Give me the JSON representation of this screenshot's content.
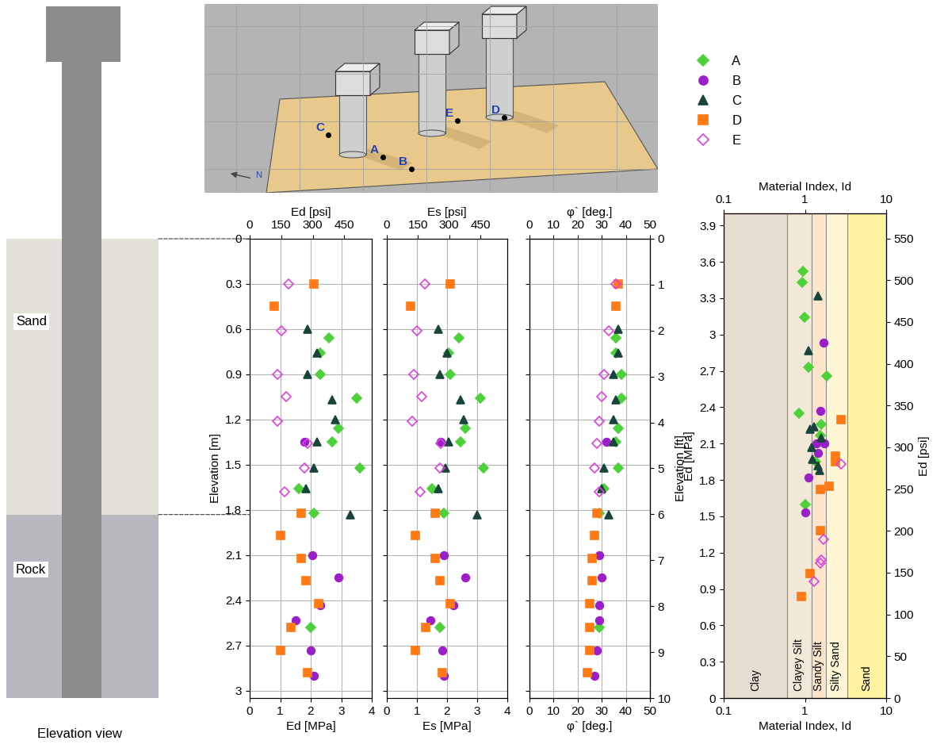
{
  "elevation_view": {
    "caption": "Elevation view",
    "layers": [
      {
        "name": "Sand",
        "top": 0,
        "bottom": 1.83
      },
      {
        "name": "Rock",
        "top": 1.83,
        "bottom": 3.048
      }
    ]
  },
  "site_sketch": {
    "points": [
      "A",
      "B",
      "C",
      "D",
      "E"
    ],
    "compass_label": "N"
  },
  "chart_data": [
    {
      "type": "scatter",
      "xlabel": "Ed [MPa]",
      "x2label": "Ed [psi]",
      "ylabel": "Elevation [m]",
      "xlim": [
        0,
        4
      ],
      "xticks": [
        0,
        1,
        2,
        3,
        4
      ],
      "x2lim": [
        0,
        580
      ],
      "x2ticks": [
        0,
        150,
        300,
        450
      ],
      "ylim": [
        3.048,
        0
      ],
      "yticks": [
        0,
        0.3,
        0.6,
        0.9,
        1.2,
        1.5,
        1.8,
        2.1,
        2.4,
        2.7,
        3
      ],
      "grid": true,
      "legend": "upper left",
      "series": [
        {
          "name": "A",
          "color": "#4cd13a",
          "marker": "diamond",
          "x": [
            2.6,
            2.3,
            2.3,
            3.5,
            2.9,
            2.7,
            3.6,
            1.6,
            2.1,
            2.0
          ],
          "y": [
            0.66,
            0.76,
            0.9,
            1.06,
            1.26,
            1.35,
            1.52,
            1.66,
            1.82,
            2.58
          ]
        },
        {
          "name": "B",
          "color": "#9b1fc9",
          "marker": "circle",
          "x": [
            1.8,
            2.05,
            2.9,
            2.3,
            1.5,
            2.0,
            2.1
          ],
          "y": [
            1.35,
            2.1,
            2.25,
            2.43,
            2.53,
            2.73,
            2.9
          ]
        },
        {
          "name": "C",
          "color": "#18453b",
          "marker": "triangle",
          "x": [
            1.9,
            2.2,
            1.9,
            2.7,
            2.8,
            2.2,
            2.1,
            1.85,
            3.3
          ],
          "y": [
            0.6,
            0.76,
            0.9,
            1.07,
            1.2,
            1.35,
            1.52,
            1.66,
            1.83
          ]
        },
        {
          "name": "D",
          "color": "#ff7a14",
          "marker": "square",
          "x": [
            2.1,
            0.8,
            1.7,
            1.0,
            1.7,
            1.85,
            2.25,
            1.35,
            1.0,
            1.9
          ],
          "y": [
            0.3,
            0.45,
            1.82,
            1.97,
            2.12,
            2.27,
            2.42,
            2.58,
            2.73,
            2.88
          ]
        },
        {
          "name": "E",
          "color": "#e040e0",
          "marker": "open_diamond",
          "x": [
            1.27,
            1.05,
            0.9,
            1.2,
            0.9,
            1.9,
            1.8,
            1.15
          ],
          "y": [
            0.3,
            0.61,
            0.9,
            1.05,
            1.21,
            1.36,
            1.52,
            1.68
          ]
        }
      ]
    },
    {
      "type": "scatter",
      "xlabel": "Es [MPa]",
      "x2label": "Es [psi]",
      "xlim": [
        0,
        4
      ],
      "xticks": [
        0,
        1,
        2,
        3,
        4
      ],
      "x2lim": [
        0,
        580
      ],
      "x2ticks": [
        0,
        150,
        300,
        450
      ],
      "ylim": [
        3.048,
        0
      ],
      "yticks": [
        0,
        0.3,
        0.6,
        0.9,
        1.2,
        1.5,
        1.8,
        2.1,
        2.4,
        2.7,
        3
      ],
      "grid": true,
      "tick_labels": "x",
      "series": [
        {
          "name": "A",
          "color": "#4cd13a",
          "marker": "diamond",
          "x": [
            2.4,
            2.05,
            2.1,
            3.1,
            2.6,
            2.45,
            3.2,
            1.5,
            1.9,
            1.75
          ],
          "y": [
            0.66,
            0.76,
            0.9,
            1.06,
            1.26,
            1.35,
            1.52,
            1.66,
            1.82,
            2.58
          ]
        },
        {
          "name": "B",
          "color": "#9b1fc9",
          "marker": "circle",
          "x": [
            1.8,
            1.9,
            2.6,
            2.2,
            1.45,
            1.85,
            1.9
          ],
          "y": [
            1.35,
            2.1,
            2.25,
            2.43,
            2.53,
            2.73,
            2.9
          ]
        },
        {
          "name": "C",
          "color": "#18453b",
          "marker": "triangle",
          "x": [
            1.7,
            2.0,
            1.75,
            2.45,
            2.55,
            2.05,
            1.95,
            1.7,
            3.0
          ],
          "y": [
            0.6,
            0.76,
            0.9,
            1.07,
            1.2,
            1.35,
            1.52,
            1.66,
            1.83
          ]
        },
        {
          "name": "D",
          "color": "#ff7a14",
          "marker": "square",
          "x": [
            2.1,
            0.8,
            1.6,
            0.95,
            1.6,
            1.75,
            2.1,
            1.3,
            0.95,
            1.85
          ],
          "y": [
            0.3,
            0.45,
            1.82,
            1.97,
            2.12,
            2.27,
            2.42,
            2.58,
            2.73,
            2.88
          ]
        },
        {
          "name": "E",
          "color": "#e040e0",
          "marker": "open_diamond",
          "x": [
            1.25,
            1.0,
            0.9,
            1.15,
            0.85,
            1.8,
            1.75,
            1.1
          ],
          "y": [
            0.3,
            0.61,
            0.9,
            1.05,
            1.21,
            1.36,
            1.52,
            1.68
          ]
        }
      ]
    },
    {
      "type": "scatter",
      "xlabel": "φ` [deg.]",
      "x2label": "φ` [deg.]",
      "y2label": "Elevation [ft]",
      "xlim": [
        0,
        50
      ],
      "xticks": [
        0,
        10,
        20,
        30,
        40,
        50
      ],
      "x2lim": [
        0,
        50
      ],
      "x2ticks": [
        0,
        10,
        20,
        30,
        40,
        50
      ],
      "ylim": [
        3.048,
        0
      ],
      "yticks": [
        0,
        0.3,
        0.6,
        0.9,
        1.2,
        1.5,
        1.8,
        2.1,
        2.4,
        2.7,
        3
      ],
      "y2lim": [
        10,
        0
      ],
      "y2ticks": [
        0,
        1,
        2,
        3,
        4,
        5,
        6,
        7,
        8,
        9,
        10
      ],
      "grid": true,
      "tick_labels": "x",
      "series": [
        {
          "name": "A",
          "color": "#4cd13a",
          "marker": "diamond",
          "x": [
            36,
            36,
            38,
            38,
            37,
            36,
            37,
            31,
            29,
            29
          ],
          "y": [
            0.66,
            0.76,
            0.9,
            1.06,
            1.26,
            1.35,
            1.52,
            1.66,
            1.82,
            2.58
          ]
        },
        {
          "name": "B",
          "color": "#9b1fc9",
          "marker": "circle",
          "x": [
            32,
            29,
            30,
            29,
            29,
            28,
            27
          ],
          "y": [
            1.35,
            2.1,
            2.25,
            2.43,
            2.53,
            2.73,
            2.9
          ]
        },
        {
          "name": "C",
          "color": "#18453b",
          "marker": "triangle",
          "x": [
            37,
            37,
            35,
            36,
            35,
            35,
            31,
            30,
            33
          ],
          "y": [
            0.6,
            0.76,
            0.9,
            1.07,
            1.2,
            1.35,
            1.52,
            1.66,
            1.83
          ]
        },
        {
          "name": "D",
          "color": "#ff7a14",
          "marker": "square",
          "x": [
            37,
            36,
            28,
            27,
            26,
            26,
            25,
            25,
            25,
            24
          ],
          "y": [
            0.3,
            0.45,
            1.82,
            1.97,
            2.12,
            2.27,
            2.42,
            2.58,
            2.73,
            2.88
          ]
        },
        {
          "name": "E",
          "color": "#e040e0",
          "marker": "open_diamond",
          "x": [
            36,
            33,
            31,
            30,
            29,
            28,
            27,
            29
          ],
          "y": [
            0.3,
            0.61,
            0.9,
            1.05,
            1.21,
            1.36,
            1.52,
            1.68
          ]
        }
      ]
    },
    {
      "type": "scatter",
      "xlabel": "Material Index, Id",
      "x2label": "Material Index, Id",
      "ylabel": "Ed [MPa]",
      "y2label": "Ed [psi]",
      "log": "x",
      "xlim": [
        0.1,
        10
      ],
      "xticks": [
        0.1,
        1,
        10
      ],
      "x2lim": [
        0.1,
        10
      ],
      "x2ticks": [
        0.1,
        1,
        10
      ],
      "ylim": [
        0,
        4
      ],
      "yticks": [
        0,
        0.3,
        0.6,
        0.9,
        1.2,
        1.5,
        1.8,
        2.1,
        2.4,
        2.7,
        3,
        3.3,
        3.6,
        3.9
      ],
      "y2lim": [
        0,
        580
      ],
      "y2ticks": [
        0,
        50,
        100,
        150,
        200,
        250,
        300,
        350,
        400,
        450,
        500,
        550
      ],
      "grid": false,
      "zones": [
        {
          "name": "Clay",
          "from": 0.1,
          "to": 0.6,
          "color": "#e6dccf"
        },
        {
          "name": "Clayey Silt",
          "from": 0.6,
          "to": 1.2,
          "color": "#f2e8d8"
        },
        {
          "name": "Sandy Silt",
          "from": 1.2,
          "to": 1.8,
          "color": "#fde5cc"
        },
        {
          "name": "Silty Sand",
          "from": 1.8,
          "to": 3.3,
          "color": "#fef7d6"
        },
        {
          "name": "Sand",
          "from": 3.3,
          "to": 10,
          "color": "#fdf3a0"
        }
      ],
      "series": [
        {
          "name": "A",
          "color": "#4cd13a",
          "marker": "diamond",
          "x": [
            0.95,
            0.92,
            0.98,
            1.1,
            1.85,
            1.6,
            0.85,
            1.55,
            1.35,
            1.0
          ],
          "y": [
            3.52,
            3.43,
            3.14,
            2.73,
            2.66,
            2.26,
            2.35,
            2.17,
            1.95,
            1.6
          ]
        },
        {
          "name": "B",
          "color": "#9b1fc9",
          "marker": "circle",
          "x": [
            1.7,
            1.55,
            1.75,
            1.4,
            1.45,
            1.1,
            1.0
          ],
          "y": [
            2.93,
            2.37,
            2.1,
            2.1,
            2.02,
            1.82,
            1.53
          ]
        },
        {
          "name": "C",
          "color": "#18453b",
          "marker": "triangle",
          "x": [
            1.45,
            1.1,
            1.3,
            1.15,
            1.6,
            1.2,
            1.25,
            1.45,
            1.5
          ],
          "y": [
            3.32,
            2.87,
            2.24,
            2.22,
            2.15,
            2.07,
            1.97,
            1.92,
            1.88
          ]
        },
        {
          "name": "D",
          "color": "#ff7a14",
          "marker": "square",
          "x": [
            2.8,
            2.35,
            2.35,
            2.0,
            1.55,
            1.55,
            1.15,
            0.9
          ],
          "y": [
            2.3,
            2.0,
            1.95,
            1.75,
            1.72,
            1.38,
            1.03,
            0.84
          ]
        },
        {
          "name": "E",
          "color": "#e040e0",
          "marker": "open_diamond",
          "x": [
            2.75,
            1.7,
            1.6,
            1.55,
            1.3
          ],
          "y": [
            1.93,
            1.31,
            1.14,
            1.11,
            0.96
          ]
        }
      ]
    }
  ]
}
